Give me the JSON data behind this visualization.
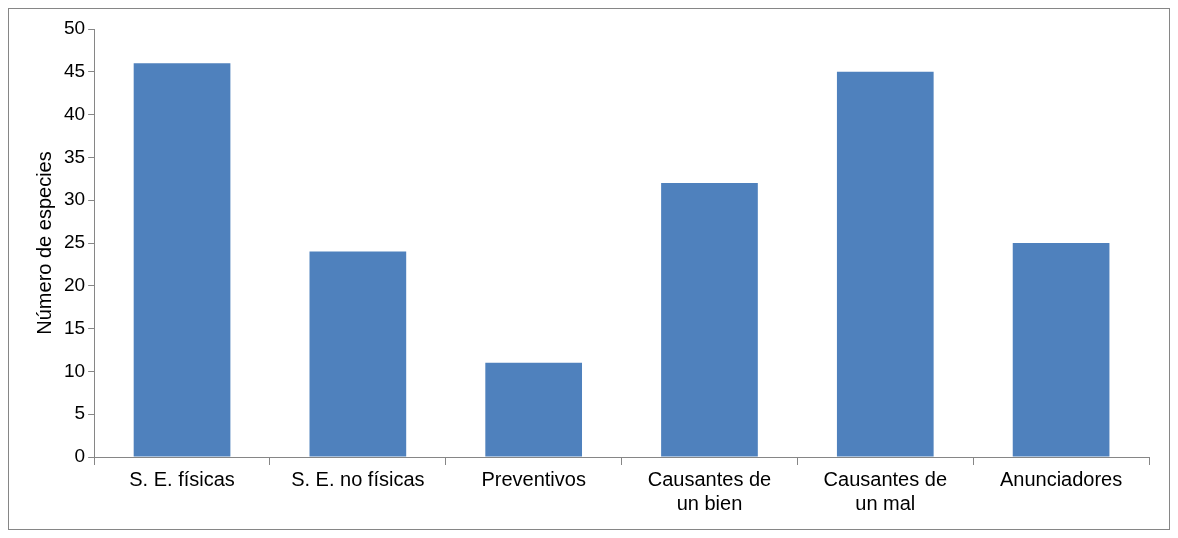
{
  "chart_data": {
    "type": "bar",
    "ylabel": "Número de especies",
    "categories": [
      "S. E. físicas",
      "S. E. no físicas",
      "Preventivos",
      "Causantes de un bien",
      "Causantes de un mal",
      "Anunciadores"
    ],
    "values": [
      46,
      24,
      11,
      32,
      45,
      25
    ],
    "color": "#4f81bd",
    "ylim": [
      0,
      50
    ],
    "yticks": [
      0,
      5,
      10,
      15,
      20,
      25,
      30,
      35,
      40,
      45,
      50
    ],
    "grid": false,
    "legend": false
  }
}
